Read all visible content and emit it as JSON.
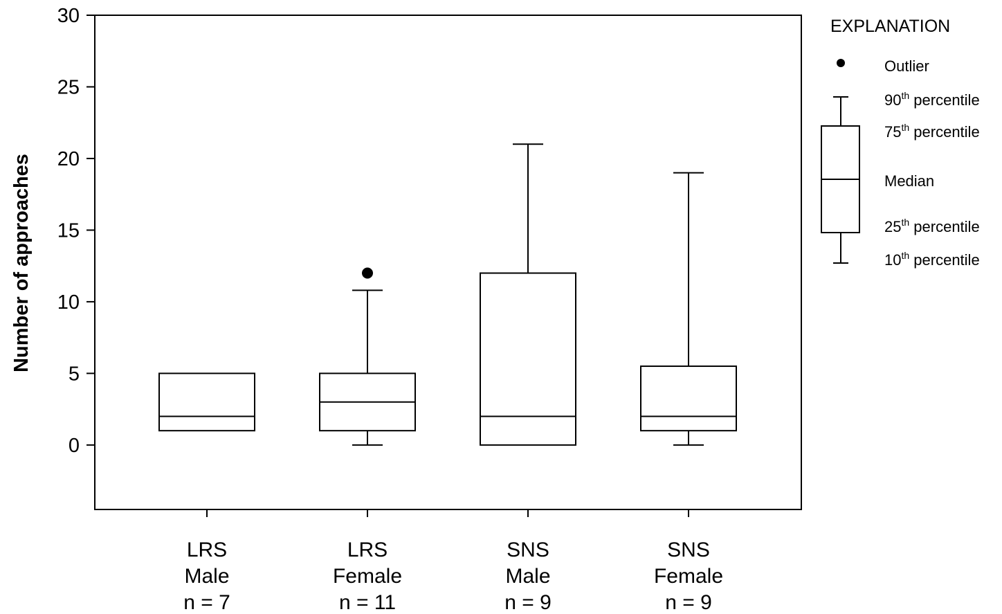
{
  "chart_data": {
    "type": "box",
    "ylabel": "Number of approaches",
    "xlabel": "",
    "ylim": [
      -4.5,
      30
    ],
    "yticks": [
      0,
      5,
      10,
      15,
      20,
      25,
      30
    ],
    "grid": false,
    "categories": [
      {
        "lines": [
          "LRS",
          "Male",
          "n = 7"
        ],
        "p10": null,
        "q1": 1,
        "median": 2,
        "q3": 5,
        "p90": null,
        "outliers": []
      },
      {
        "lines": [
          "LRS",
          "Female",
          "n = 11"
        ],
        "p10": 0,
        "q1": 1,
        "median": 3,
        "q3": 5,
        "p90": 10.8,
        "outliers": [
          12
        ]
      },
      {
        "lines": [
          "SNS",
          "Male",
          "n = 9"
        ],
        "p10": null,
        "q1": 0,
        "median": 2,
        "q3": 12,
        "p90": 21,
        "outliers": []
      },
      {
        "lines": [
          "SNS",
          "Female",
          "n = 9"
        ],
        "p10": 0,
        "q1": 1,
        "median": 2,
        "q3": 5.5,
        "p90": 19,
        "outliers": []
      }
    ],
    "legend": {
      "title": "EXPLANATION",
      "placement": "right",
      "items": [
        {
          "key": "outlier",
          "text": "Outlier",
          "sup": ""
        },
        {
          "key": "p90",
          "text": "90",
          "sup": "th",
          "suffix": " percentile"
        },
        {
          "key": "p75",
          "text": "75",
          "sup": "th",
          "suffix": " percentile"
        },
        {
          "key": "median",
          "text": "Median",
          "sup": ""
        },
        {
          "key": "p25",
          "text": "25",
          "sup": "th",
          "suffix": " percentile"
        },
        {
          "key": "p10",
          "text": "10",
          "sup": "th",
          "suffix": " percentile"
        }
      ]
    }
  }
}
